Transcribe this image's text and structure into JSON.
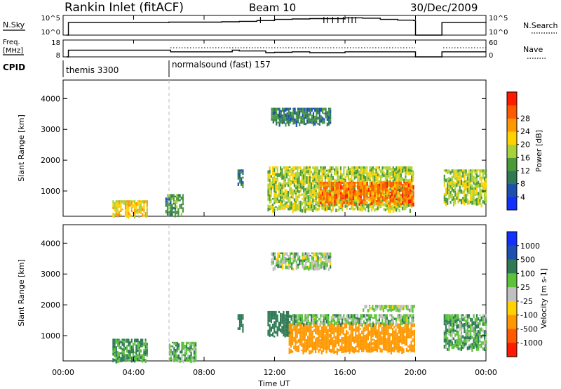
{
  "header": {
    "station": "Rankin Inlet (fitACF)",
    "beam": "Beam 10",
    "date": "30/Dec/2009"
  },
  "left_labels": {
    "nsky": "N.Sky",
    "nsky_top": "10^5",
    "nsky_bot": "10^0",
    "freq": "Freq.",
    "freq_unit": "[MHz]",
    "freq_top": "18",
    "freq_bot": "8",
    "cpid": "CPID"
  },
  "right_labels": {
    "nsearch": "N.Search",
    "nsearch_top": "10^5",
    "nsearch_bot": "10^0",
    "nave": "Nave",
    "nave_top": "60",
    "nave_bot": "0"
  },
  "cpid_segments": [
    {
      "label": "themis 3300",
      "start_hour": 0
    },
    {
      "label": "normalsound (fast) 157",
      "start_hour": 6
    }
  ],
  "time_axis": {
    "label": "Time UT",
    "ticks": [
      "00:00",
      "04:00",
      "08:00",
      "12:00",
      "16:00",
      "20:00",
      "00:00"
    ],
    "range_hours": [
      0,
      24
    ]
  },
  "range_axis": {
    "label": "Slant Range [km]",
    "ticks": [
      "1000",
      "2000",
      "3000",
      "4000"
    ],
    "range_km": [
      180,
      4600
    ]
  },
  "power_colorbar": {
    "label": "Power [dB]",
    "ticks": [
      "4",
      "8",
      "12",
      "16",
      "20",
      "24",
      "28"
    ],
    "colors": [
      "#1430ff",
      "#1c4fb0",
      "#2f7a55",
      "#4a9a3a",
      "#a8d23a",
      "#ffd200",
      "#ff9800",
      "#ff5a00",
      "#ff1a00"
    ]
  },
  "velocity_colorbar": {
    "label": "Velocity [m s-1]",
    "ticks": [
      "1000",
      "500",
      "100",
      "25",
      "-25",
      "-100",
      "-500",
      "-1000"
    ],
    "colors": [
      "#1430ff",
      "#1c4fb0",
      "#2f7a55",
      "#5cc23a",
      "#c0c0c0",
      "#ffd200",
      "#ff9800",
      "#ff5a00",
      "#ff1a00"
    ]
  },
  "chart_data": [
    {
      "type": "line",
      "title": "N.Sky",
      "x_hours": [
        0.2,
        0.3,
        2,
        4,
        6,
        8,
        9,
        10,
        11,
        12,
        13,
        14,
        15,
        16,
        17,
        18,
        19,
        19.9,
        20,
        21.3,
        21.5,
        24
      ],
      "log_count": [
        0,
        3.2,
        3.2,
        3.2,
        3.3,
        3.3,
        3.4,
        3.5,
        3.7,
        4.0,
        4.1,
        4.2,
        4.2,
        4.4,
        4.3,
        4.0,
        3.8,
        3.7,
        0,
        0,
        3.2,
        3.3
      ],
      "ylim": [
        "10^0",
        "10^5"
      ]
    },
    {
      "type": "line",
      "title": "Freq.",
      "x_hours": [
        0.2,
        0.3,
        3,
        6,
        6.1,
        9,
        9.6,
        10,
        11,
        11.5,
        12,
        13,
        14,
        15,
        16,
        17,
        18,
        19,
        19.9,
        20,
        21.3,
        21.5,
        24
      ],
      "freq_mhz": [
        8,
        12,
        12,
        12,
        11,
        11,
        12,
        11.5,
        11.5,
        10.5,
        10.7,
        11,
        10.5,
        10.5,
        11,
        11,
        11,
        11,
        11,
        8,
        8,
        11,
        11
      ],
      "ylim": [
        8,
        18
      ]
    },
    {
      "type": "heatmap",
      "title": "Power [dB]",
      "xlabel": "Time UT",
      "ylabel": "Slant Range [km]",
      "xlim_hours": [
        0,
        24
      ],
      "ylim_km": [
        180,
        4600
      ],
      "blobs": [
        {
          "t0": 2.8,
          "t1": 4.8,
          "r0": 200,
          "r1": 700,
          "value_db": 22
        },
        {
          "t0": 5.8,
          "t1": 6.8,
          "r0": 200,
          "r1": 900,
          "value_db": 12
        },
        {
          "t0": 9.9,
          "t1": 10.2,
          "r0": 1200,
          "r1": 1700,
          "value_db": 8
        },
        {
          "t0": 11.6,
          "t1": 19.9,
          "r0": 400,
          "r1": 1800,
          "value_db": 18
        },
        {
          "t0": 14.5,
          "t1": 19.9,
          "r0": 600,
          "r1": 1300,
          "value_db": 28
        },
        {
          "t0": 11.8,
          "t1": 15.2,
          "r0": 3200,
          "r1": 3700,
          "value_db": 10
        },
        {
          "t0": 21.6,
          "t1": 24.0,
          "r0": 600,
          "r1": 1700,
          "value_db": 18
        }
      ]
    },
    {
      "type": "heatmap",
      "title": "Velocity [m s-1]",
      "xlabel": "Time UT",
      "ylabel": "Slant Range [km]",
      "xlim_hours": [
        0,
        24
      ],
      "ylim_km": [
        180,
        4600
      ],
      "blobs": [
        {
          "t0": 2.8,
          "t1": 4.8,
          "r0": 200,
          "r1": 900,
          "value_ms": 120
        },
        {
          "t0": 6.0,
          "t1": 7.5,
          "r0": 200,
          "r1": 800,
          "value_ms": 80
        },
        {
          "t0": 9.9,
          "t1": 10.2,
          "r0": 1200,
          "r1": 1700,
          "value_ms": 200
        },
        {
          "t0": 11.6,
          "t1": 13.0,
          "r0": 1000,
          "r1": 1800,
          "value_ms": 300
        },
        {
          "t0": 12.8,
          "t1": 19.9,
          "r0": 500,
          "r1": 1400,
          "value_ms": -300
        },
        {
          "t0": 13.0,
          "t1": 19.9,
          "r0": 1400,
          "r1": 1700,
          "value_ms": 60
        },
        {
          "t0": 17.0,
          "t1": 19.9,
          "r0": 1850,
          "r1": 2000,
          "value_ms": 0
        },
        {
          "t0": 11.8,
          "t1": 15.2,
          "r0": 3200,
          "r1": 3700,
          "value_ms": 40
        },
        {
          "t0": 21.6,
          "t1": 24.0,
          "r0": 600,
          "r1": 1700,
          "value_ms": 80
        }
      ]
    }
  ]
}
